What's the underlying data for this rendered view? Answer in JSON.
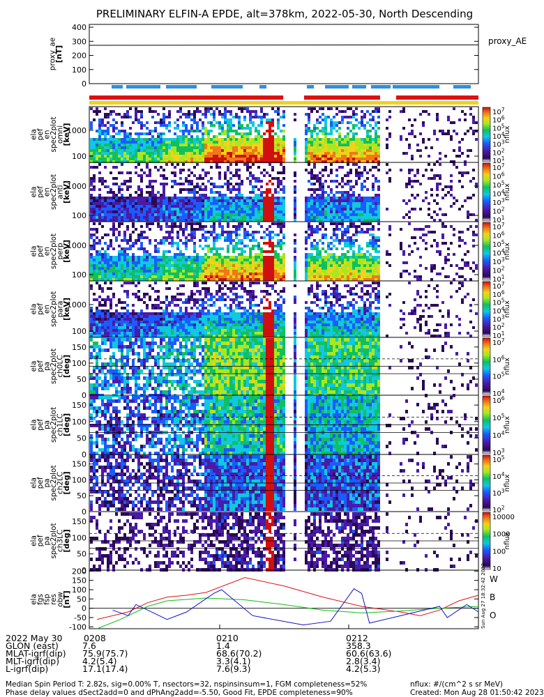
{
  "title": "PRELIMINARY ELFIN-A EPDE, alt=378km, 2022-05-30, North Descending",
  "side_stamp": "Sun Aug 27 18:32:42 2023",
  "colors": {
    "red_bar": "#dd1111",
    "blue_bar": "#2b8fe6",
    "yellow_bar": "#f2d21a",
    "w": "#dd1111",
    "b": "#11bb11",
    "o": "#1111cc"
  },
  "chart_data": [
    {
      "type": "line",
      "panel": "proxy_ae",
      "ylabel": [
        "proxy_ae",
        "[nT]"
      ],
      "yticks": [
        "0",
        "100",
        "200",
        "300",
        "400"
      ],
      "ylim": [
        0,
        420
      ],
      "series": [
        {
          "name": "proxy_AE",
          "x": [
            0,
            1
          ],
          "y": [
            272,
            275
          ]
        }
      ]
    },
    {
      "type": "heatmap",
      "panel": "spec-1",
      "ylabel": [
        "ela",
        "pef",
        "en",
        "spec2plot",
        "omni",
        "[keV]"
      ],
      "yticks": [
        "100",
        "1000"
      ],
      "ztitle": "nflux",
      "zticks": [
        "10^7",
        "10^6",
        "10^5",
        "10^4",
        "10^3",
        "10^2",
        "10^1"
      ]
    },
    {
      "type": "heatmap",
      "panel": "spec-2",
      "ylabel": [
        "ela",
        "pef",
        "en",
        "spec2plot",
        "anti",
        "[keV]"
      ],
      "yticks": [
        "100",
        "1000"
      ],
      "ztitle": "nflux",
      "zticks": [
        "10^7",
        "10^6",
        "10^5",
        "10^4",
        "10^3",
        "10^2",
        "10^1"
      ]
    },
    {
      "type": "heatmap",
      "panel": "spec-3",
      "ylabel": [
        "ela",
        "pef",
        "en",
        "spec2plot",
        "perp",
        "[keV]"
      ],
      "yticks": [
        "100",
        "1000"
      ],
      "ztitle": "nflux",
      "zticks": [
        "10^7",
        "10^6",
        "10^5",
        "10^4",
        "10^3",
        "10^2",
        "10^1"
      ]
    },
    {
      "type": "heatmap",
      "panel": "spec-4",
      "ylabel": [
        "ela",
        "pef",
        "en",
        "spec2plot",
        "para",
        "[keV]"
      ],
      "yticks": [
        "100",
        "1000"
      ],
      "ztitle": "nflux",
      "zticks": [
        "10^7",
        "10^6",
        "10^5",
        "10^4",
        "10^3",
        "10^2",
        "10^1"
      ]
    },
    {
      "type": "heatmap",
      "panel": "pa-0",
      "ylabel": [
        "ela",
        "pef",
        "pa",
        "spec2plot",
        "ch0LC",
        "[deg]"
      ],
      "yticks": [
        "0",
        "50",
        "100",
        "150"
      ],
      "ztitle": "nflux",
      "zticks": [
        "10^7",
        "10^6",
        "10^5",
        "10^4"
      ]
    },
    {
      "type": "heatmap",
      "panel": "pa-1",
      "ylabel": [
        "ela",
        "pef",
        "pa",
        "spec2plot",
        "ch1LC",
        "[deg]"
      ],
      "yticks": [
        "0",
        "50",
        "100",
        "150"
      ],
      "ztitle": "nflux",
      "zticks": [
        "10^6",
        "10^5",
        "10^4",
        "10^3"
      ]
    },
    {
      "type": "heatmap",
      "panel": "pa-2",
      "ylabel": [
        "ela",
        "pef",
        "pa",
        "spec2plot",
        "ch2LC",
        "[deg]"
      ],
      "yticks": [
        "0",
        "50",
        "100",
        "150"
      ],
      "ztitle": "nflux",
      "zticks": [
        "10^5",
        "10^4",
        "10^3",
        "10^2"
      ]
    },
    {
      "type": "heatmap",
      "panel": "pa-3",
      "ylabel": [
        "ela",
        "pef",
        "pa",
        "spec2plot",
        "ch3LC",
        "[deg]"
      ],
      "yticks": [
        "0",
        "50",
        "100",
        "150"
      ],
      "ztitle": "nflux",
      "zticks": [
        "10000",
        "1000",
        "100",
        "10"
      ]
    },
    {
      "type": "line",
      "panel": "fgs",
      "ylabel": [
        "ela",
        "fgs",
        "fsp",
        "res",
        "obw",
        "[nT]"
      ],
      "yticks": [
        "-100",
        "-50",
        "0",
        "50",
        "100",
        "150",
        "200"
      ],
      "ylim": [
        -110,
        205
      ],
      "series": [
        {
          "name": "W",
          "x": [
            0.02,
            0.06,
            0.1,
            0.15,
            0.2,
            0.25,
            0.3,
            0.4,
            0.5,
            0.6,
            0.7,
            0.8,
            0.85,
            0.9,
            0.95,
            1.0
          ],
          "y": [
            -60,
            -40,
            -20,
            30,
            60,
            70,
            85,
            165,
            120,
            60,
            10,
            -20,
            -40,
            -10,
            40,
            70
          ]
        },
        {
          "name": "B",
          "x": [
            0.02,
            0.08,
            0.15,
            0.2,
            0.3,
            0.4,
            0.5,
            0.6,
            0.7,
            0.8,
            0.9,
            1.0
          ],
          "y": [
            -110,
            -60,
            10,
            40,
            55,
            45,
            20,
            -10,
            -25,
            -15,
            0,
            10
          ]
        },
        {
          "name": "O",
          "x": [
            0.06,
            0.1,
            0.12,
            0.2,
            0.25,
            0.32,
            0.34,
            0.42,
            0.55,
            0.62,
            0.68,
            0.7,
            0.72,
            0.8,
            0.9,
            0.92,
            0.97,
            1.0
          ],
          "y": [
            -10,
            -40,
            20,
            -60,
            -20,
            80,
            100,
            -40,
            -90,
            -70,
            105,
            80,
            -80,
            -40,
            10,
            -50,
            20,
            -20
          ]
        }
      ]
    }
  ],
  "fgs_legend": [
    "W",
    "B",
    "O"
  ],
  "xaxis": {
    "rows": [
      {
        "label": "2022 May 30",
        "values": [
          "0208",
          "0210",
          "0212"
        ]
      },
      {
        "label": "GLON (east)",
        "values": [
          "7.6",
          "1.4",
          "358.3"
        ]
      },
      {
        "label": "MLAT-igrf(dip)",
        "values": [
          "75.9(75.7)",
          "68.6(70.2)",
          "60.6(63.6)"
        ]
      },
      {
        "label": "MLT-igrf(dip)",
        "values": [
          "4.2(5.4)",
          "3.3(4.1)",
          "2.8(3.4)"
        ]
      },
      {
        "label": "L-igrf(dip)",
        "values": [
          "17.1(17.4)",
          "7.6(9.3)",
          "4.2(5.3)"
        ]
      }
    ]
  },
  "footer": {
    "line1_left": "Median Spin Period T: 2.82s, sig=0.00% T, nsectors=32, nspinsinsum=1, FGM completeness=52%",
    "line2_left": "Phase delay values dSect2add=0 and dPhAng2add=-5.50, Good Fit, EPDE completeness=90%",
    "line1_right": "nflux: #/(cm^2 s sr MeV)",
    "line2_right": "Created: Mon Aug 28 01:50:42 2023"
  }
}
